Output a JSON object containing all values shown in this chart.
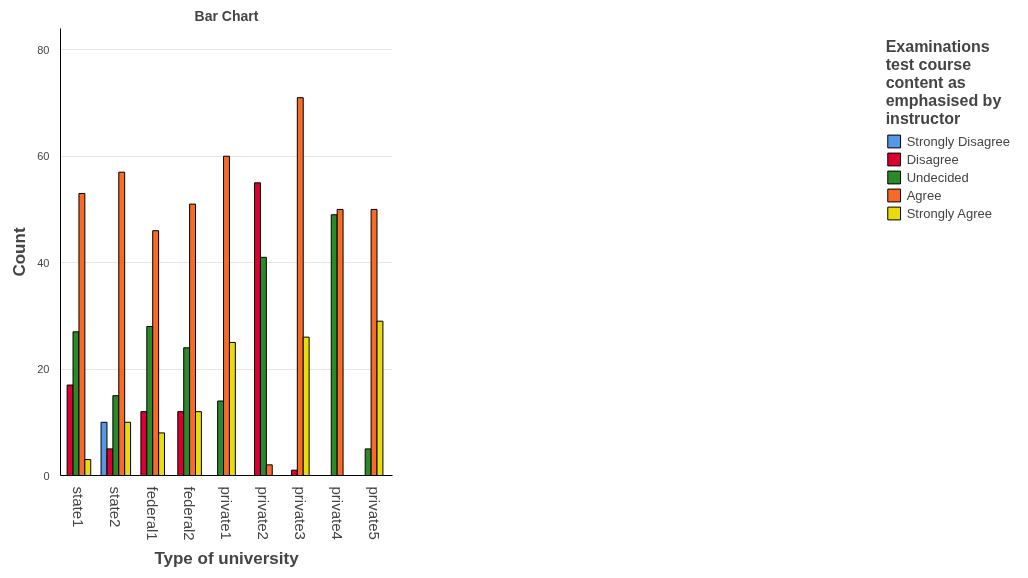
{
  "chart_data": {
    "type": "bar",
    "title": "Bar Chart",
    "xlabel": "Type of university",
    "ylabel": "Count",
    "legend_title": "Examinations test course content as emphasised by instructor",
    "categories": [
      "state1",
      "state2",
      "federal1",
      "federal2",
      "private1",
      "private2",
      "private3",
      "private4",
      "private5"
    ],
    "series": [
      {
        "name": "Strongly Disagree",
        "color": "#5599e6",
        "values": [
          null,
          10,
          null,
          null,
          null,
          null,
          null,
          null,
          null
        ]
      },
      {
        "name": "Disagree",
        "color": "#dc0032",
        "values": [
          17,
          5,
          12,
          12,
          null,
          55,
          1,
          null,
          null
        ]
      },
      {
        "name": "Undecided",
        "color": "#2a8a28",
        "values": [
          27,
          15,
          28,
          24,
          14,
          41,
          null,
          49,
          5
        ]
      },
      {
        "name": "Agree",
        "color": "#f76b28",
        "values": [
          53,
          57,
          46,
          51,
          60,
          2,
          71,
          50,
          50
        ]
      },
      {
        "name": "Strongly Agree",
        "color": "#e8dc0c",
        "values": [
          3,
          10,
          8,
          12,
          25,
          null,
          26,
          null,
          29
        ]
      }
    ],
    "ylim": [
      0,
      84
    ],
    "yticks": [
      0,
      20,
      40,
      60,
      80
    ],
    "grid": "y",
    "legend": "right"
  }
}
